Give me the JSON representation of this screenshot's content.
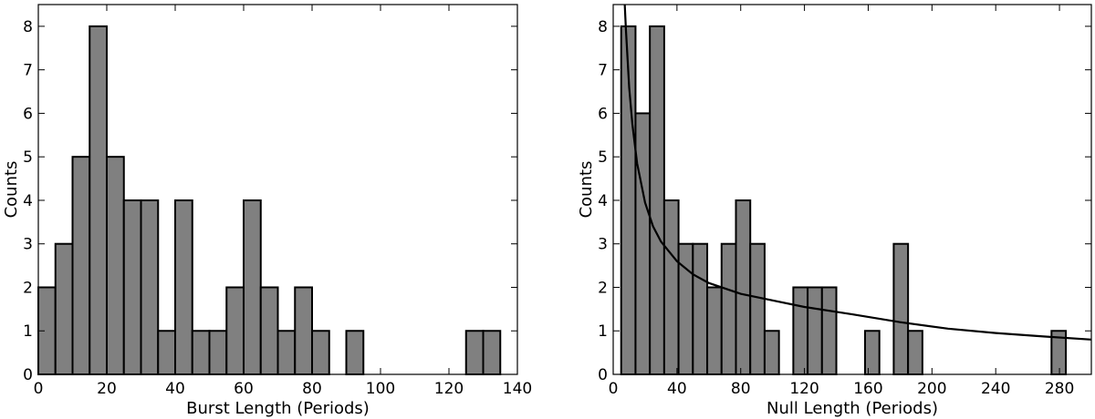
{
  "chart_data": [
    {
      "type": "bar",
      "xlabel": "Burst Length (Periods)",
      "ylabel": "Counts",
      "xlim": [
        0,
        140
      ],
      "ylim": [
        0,
        8.5
      ],
      "xticks": [
        0,
        20,
        40,
        60,
        80,
        100,
        120,
        140
      ],
      "yticks": [
        0,
        1,
        2,
        3,
        4,
        5,
        6,
        7,
        8
      ],
      "bin_width": 5,
      "bin_starts": [
        0,
        5,
        10,
        15,
        20,
        25,
        30,
        35,
        40,
        45,
        50,
        55,
        60,
        65,
        70,
        75,
        80,
        85,
        90,
        95,
        100,
        105,
        110,
        115,
        120,
        125,
        130
      ],
      "values": [
        2,
        3,
        5,
        8,
        5,
        4,
        4,
        1,
        4,
        1,
        1,
        2,
        4,
        2,
        1,
        2,
        1,
        0,
        1,
        0,
        0,
        0,
        0,
        0,
        0,
        1,
        1
      ]
    },
    {
      "type": "bar",
      "xlabel": "Null Length (Periods)",
      "ylabel": "Counts",
      "xlim": [
        0,
        300
      ],
      "ylim": [
        0,
        8.5
      ],
      "xticks": [
        0,
        40,
        80,
        120,
        160,
        200,
        240,
        280
      ],
      "yticks": [
        0,
        1,
        2,
        3,
        4,
        5,
        6,
        7,
        8
      ],
      "bin_width": 9,
      "bin_starts": [
        5,
        14,
        23,
        32,
        41,
        50,
        59,
        68,
        77,
        86,
        95,
        104,
        113,
        122,
        131,
        140,
        149,
        158,
        167,
        176,
        185,
        194,
        203,
        212,
        221,
        230,
        239,
        248,
        257,
        266,
        275
      ],
      "values": [
        8,
        6,
        8,
        4,
        3,
        3,
        2,
        3,
        4,
        3,
        1,
        0,
        2,
        2,
        2,
        0,
        0,
        1,
        0,
        3,
        1,
        0,
        0,
        0,
        0,
        0,
        0,
        0,
        0,
        0,
        1
      ],
      "fit_curve": {
        "x": [
          7,
          8,
          10,
          12,
          15,
          20,
          25,
          30,
          40,
          50,
          60,
          80,
          100,
          120,
          150,
          180,
          210,
          240,
          270,
          300
        ],
        "y": [
          8.7,
          7.9,
          6.6,
          5.75,
          4.85,
          3.95,
          3.4,
          3.05,
          2.6,
          2.3,
          2.1,
          1.85,
          1.7,
          1.55,
          1.38,
          1.2,
          1.05,
          0.95,
          0.87,
          0.8
        ]
      }
    }
  ]
}
